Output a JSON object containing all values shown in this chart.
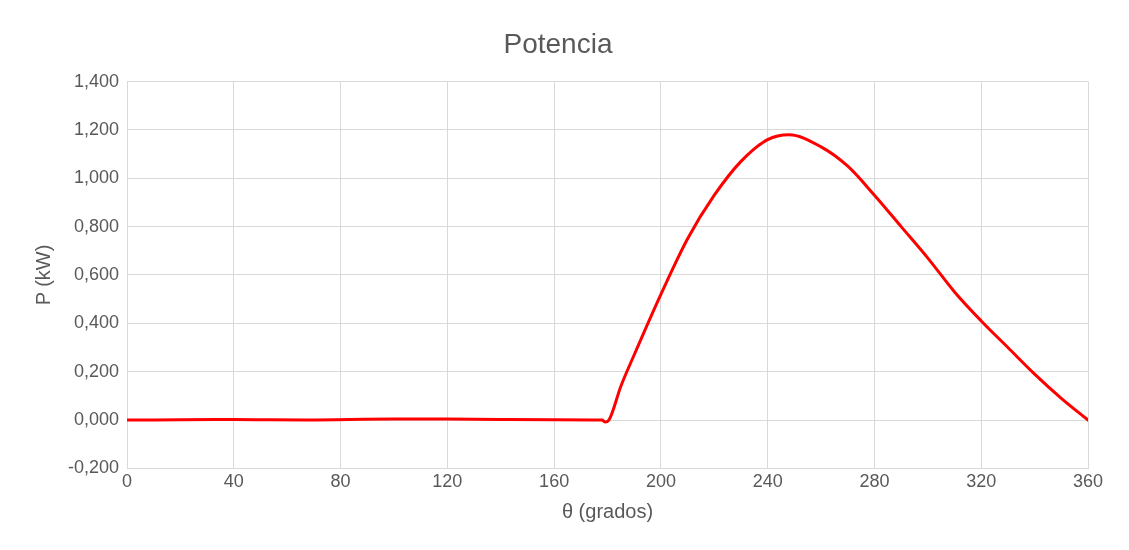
{
  "chart_data": {
    "type": "line",
    "title": "Potencia",
    "xlabel": "θ (grados)",
    "ylabel": "P (kW)",
    "x": [
      0,
      20,
      40,
      67,
      100,
      120,
      160,
      178,
      179,
      180.5,
      185,
      190,
      200,
      210,
      220,
      230,
      240,
      248,
      260,
      270,
      280,
      290,
      300,
      310,
      320,
      330,
      340,
      350,
      360
    ],
    "series": [
      {
        "color": "#ff0000",
        "values": [
          0,
          0.001,
          0.002,
          0,
          0.004,
          0.004,
          0.001,
          0,
          -0.008,
          0,
          0.14,
          0.27,
          0.52,
          0.75,
          0.93,
          1.07,
          1.16,
          1.18,
          1.13,
          1.05,
          0.93,
          0.8,
          0.67,
          0.53,
          0.41,
          0.3,
          0.19,
          0.09,
          0
        ]
      }
    ],
    "xlim": [
      0,
      360
    ],
    "xticks": [
      0,
      40,
      80,
      120,
      160,
      200,
      240,
      280,
      320,
      360
    ],
    "ylim": [
      -0.2,
      1.4
    ],
    "yticks": [
      {
        "value": -0.2,
        "label": "-0,200"
      },
      {
        "value": 0,
        "label": "0,000"
      },
      {
        "value": 0.2,
        "label": "0,200"
      },
      {
        "value": 0.4,
        "label": "0,400"
      },
      {
        "value": 0.6,
        "label": "0,600"
      },
      {
        "value": 0.8,
        "label": "0,800"
      },
      {
        "value": 1,
        "label": "1,000"
      },
      {
        "value": 1.2,
        "label": "1,200"
      },
      {
        "value": 1.4,
        "label": "1,400"
      }
    ],
    "grid": true,
    "marker": "none",
    "line_style": "solid",
    "legend": false
  }
}
